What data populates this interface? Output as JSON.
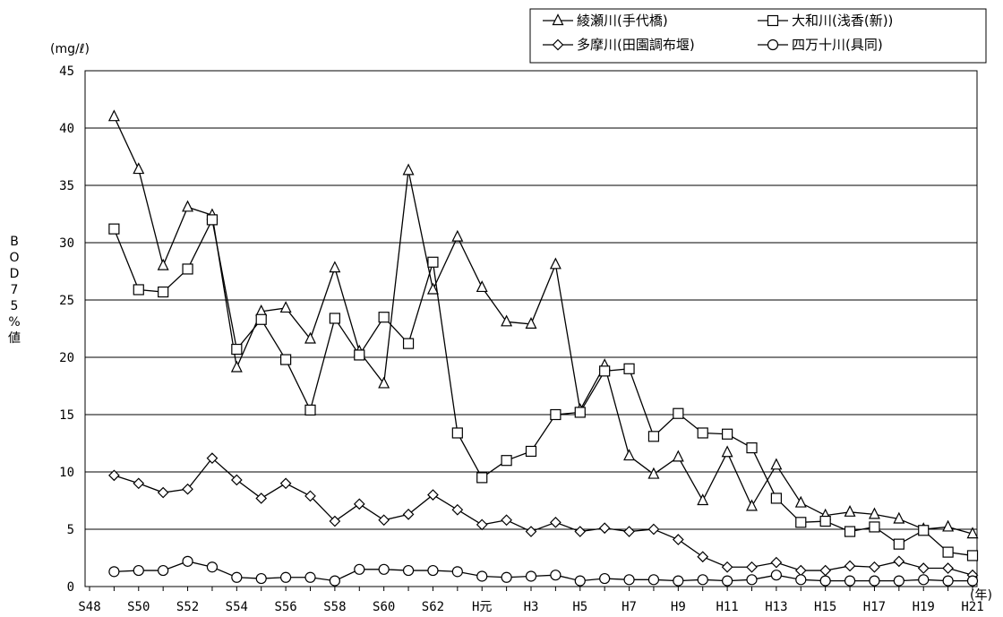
{
  "chart_data": {
    "type": "line",
    "y_unit": "(mg/ℓ)",
    "x_unit": "(年)",
    "ylabel": "BOD75%値",
    "ylim": [
      0,
      45
    ],
    "yticks": [
      0,
      5,
      10,
      15,
      20,
      25,
      30,
      35,
      40,
      45
    ],
    "grid": true,
    "legend_position": "top-right",
    "x": [
      "S48",
      "S49",
      "S50",
      "S51",
      "S52",
      "S53",
      "S54",
      "S55",
      "S56",
      "S57",
      "S58",
      "S59",
      "S60",
      "S61",
      "S62",
      "S63",
      "H元",
      "H2",
      "H3",
      "H4",
      "H5",
      "H6",
      "H7",
      "H8",
      "H9",
      "H10",
      "H11",
      "H12",
      "H13",
      "H14",
      "H15",
      "H16",
      "H17",
      "H18",
      "H19",
      "H20",
      "H21"
    ],
    "xtick_labels": [
      "S48",
      "",
      "S50",
      "",
      "S52",
      "",
      "S54",
      "",
      "S56",
      "",
      "S58",
      "",
      "S60",
      "",
      "S62",
      "",
      "H元",
      "",
      "H3",
      "",
      "H5",
      "",
      "H7",
      "",
      "H9",
      "",
      "H11",
      "",
      "H13",
      "",
      "H15",
      "",
      "H17",
      "",
      "H19",
      "",
      "H21"
    ],
    "series": [
      {
        "name": "綾瀬川(手代橋)",
        "marker": "triangle",
        "values": [
          null,
          41.0,
          36.4,
          28.0,
          33.1,
          32.4,
          19.1,
          24.0,
          24.3,
          21.6,
          27.8,
          20.5,
          17.7,
          36.3,
          25.9,
          30.5,
          26.1,
          23.1,
          22.9,
          28.1,
          15.4,
          19.3,
          11.4,
          9.8,
          11.3,
          7.5,
          11.7,
          7.0,
          10.6,
          7.3,
          6.2,
          6.5,
          6.3,
          5.9,
          5.0,
          5.2,
          4.6
        ]
      },
      {
        "name": "大和川(浅香(新))",
        "marker": "square",
        "values": [
          null,
          31.2,
          25.9,
          25.7,
          27.7,
          32.0,
          20.7,
          23.3,
          19.8,
          15.4,
          23.4,
          20.2,
          23.5,
          21.2,
          28.3,
          13.4,
          9.5,
          11.0,
          11.8,
          15.0,
          15.2,
          18.8,
          19.0,
          13.1,
          15.1,
          13.4,
          13.3,
          12.1,
          7.7,
          5.6,
          5.7,
          4.8,
          5.2,
          3.7,
          4.9,
          3.0,
          2.7
        ]
      },
      {
        "name": "多摩川(田園調布堰)",
        "marker": "diamond",
        "values": [
          null,
          9.7,
          9.0,
          8.2,
          8.5,
          11.2,
          9.3,
          7.7,
          9.0,
          7.9,
          5.7,
          7.2,
          5.8,
          6.3,
          8.0,
          6.7,
          5.4,
          5.8,
          4.8,
          5.6,
          4.8,
          5.1,
          4.8,
          5.0,
          4.1,
          2.6,
          1.7,
          1.7,
          2.1,
          1.4,
          1.4,
          1.8,
          1.7,
          2.2,
          1.6,
          1.6,
          1.0
        ]
      },
      {
        "name": "四万十川(具同)",
        "marker": "circle",
        "values": [
          null,
          1.3,
          1.4,
          1.4,
          2.2,
          1.7,
          0.8,
          0.7,
          0.8,
          0.8,
          0.5,
          1.5,
          1.5,
          1.4,
          1.4,
          1.3,
          0.9,
          0.8,
          0.9,
          1.0,
          0.5,
          0.7,
          0.6,
          0.6,
          0.5,
          0.6,
          0.5,
          0.6,
          1.0,
          0.6,
          0.5,
          0.5,
          0.5,
          0.5,
          0.6,
          0.5,
          0.5
        ]
      }
    ]
  }
}
